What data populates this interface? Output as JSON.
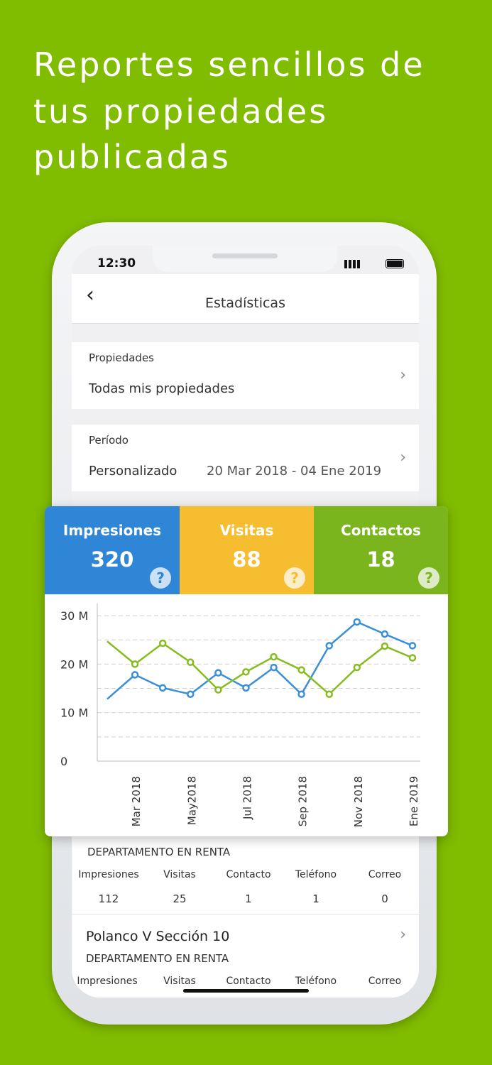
{
  "headline": {
    "lines": [
      "Reportes sencillos de",
      "tus propiedades",
      "publicadas"
    ]
  },
  "status_bar": {
    "time": "12:30"
  },
  "nav": {
    "title": "Estadísticas"
  },
  "filters": [
    {
      "label": "Propiedades",
      "value": "Todas mis propiedades"
    },
    {
      "label": "Período",
      "value": "Personalizado",
      "detail": "20 Mar 2018 - 04 Ene 2019"
    }
  ],
  "summary_cards": [
    {
      "label": "Impresiones",
      "value": "320"
    },
    {
      "label": "Visitas",
      "value": "88"
    },
    {
      "label": "Contactos",
      "value": "18"
    }
  ],
  "chart_data": {
    "type": "line",
    "categories": [
      null,
      "Mar 2018",
      null,
      "May2018",
      null,
      "Jul 2018",
      null,
      "Sep 2018",
      null,
      "Nov 2018",
      null,
      "Ene 2019"
    ],
    "series": [
      {
        "color": "#3b8fd6",
        "values": [
          12.8,
          17.8,
          15.1,
          13.8,
          18.2,
          15.1,
          19.3,
          13.8,
          23.8,
          28.7,
          26.2,
          23.8
        ]
      },
      {
        "color": "#86bc1e",
        "values": [
          24.7,
          20.0,
          24.3,
          20.4,
          14.7,
          18.4,
          21.5,
          18.8,
          13.8,
          19.3,
          23.7,
          21.3
        ]
      }
    ],
    "ylim": [
      0,
      32.5
    ],
    "yticks": [
      0,
      {
        "value": 10,
        "label": "10 M"
      },
      {
        "value": 20,
        "label": "20 M"
      },
      {
        "value": 30,
        "label": "30 M"
      }
    ],
    "minor_yticks": [
      5,
      15,
      25
    ],
    "grid": true
  },
  "listings": [
    {
      "type": "DEPARTAMENTO EN RENTA",
      "stat_headers": [
        "Impresiones",
        "Visitas",
        "Contacto",
        "Teléfono",
        "Correo"
      ],
      "stat_values": [
        "112",
        "25",
        "1",
        "1",
        "0"
      ]
    },
    {
      "title": "Polanco V Sección 10",
      "type": "DEPARTAMENTO EN RENTA",
      "stat_headers": [
        "Impresiones",
        "Visitas",
        "Contacto",
        "Teléfono",
        "Correo"
      ]
    }
  ]
}
